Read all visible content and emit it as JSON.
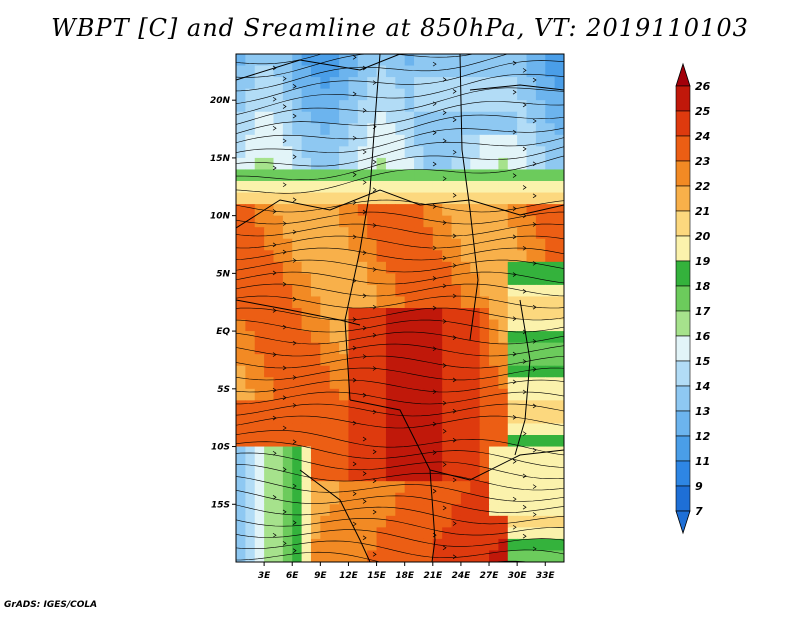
{
  "title": "WBPT [C] and Sreamline at 850hPa, VT: 2019110103",
  "credit": "GrADS: IGES/COLA",
  "lat_labels": [
    "20N",
    "15N",
    "10N",
    "5N",
    "EQ",
    "5S",
    "10S",
    "15S"
  ],
  "lon_labels": [
    "3E",
    "6E",
    "9E",
    "12E",
    "15E",
    "18E",
    "21E",
    "24E",
    "27E",
    "30E",
    "33E"
  ],
  "colorbar": {
    "levels": [
      "7",
      "9",
      "11",
      "12",
      "13",
      "14",
      "15",
      "16",
      "17",
      "18",
      "19",
      "20",
      "21",
      "22",
      "23",
      "24",
      "25",
      "26"
    ],
    "colors": [
      "#1e6fd6",
      "#2e86e4",
      "#4a9ee8",
      "#6cb4ee",
      "#8ec8f2",
      "#b2dcf6",
      "#e2f4f8",
      "#a6e28c",
      "#6ccb5c",
      "#34b23c",
      "#fbf2ac",
      "#fcd87e",
      "#f8b04a",
      "#f28a24",
      "#ec5e14",
      "#de3a0e",
      "#c0180a",
      "#a2000a"
    ]
  },
  "map": {
    "lat_range": [
      -20,
      24
    ],
    "lon_range": [
      0,
      35
    ],
    "field": "WBPT",
    "units": "C",
    "level": "850hPa",
    "valid_time": "2019110103"
  }
}
